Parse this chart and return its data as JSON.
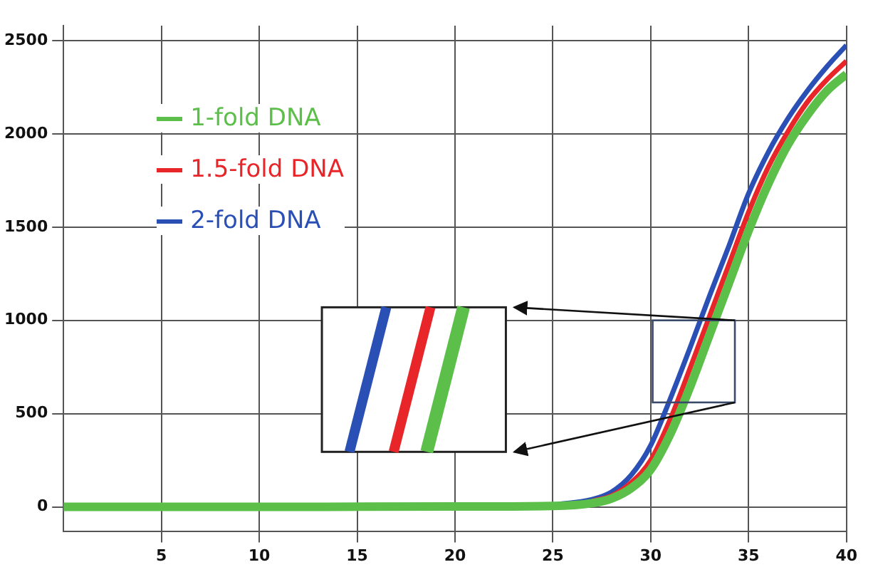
{
  "chart_data": {
    "type": "line",
    "x": [
      0,
      10,
      20,
      25,
      27,
      28,
      29,
      30,
      31,
      32,
      33,
      34,
      35,
      36,
      37,
      38,
      39,
      40
    ],
    "series": [
      {
        "name": "1-fold DNA",
        "color": "#5cbf4a",
        "values": [
          0,
          0,
          2,
          5,
          20,
          45,
          100,
          200,
          390,
          640,
          920,
          1200,
          1480,
          1730,
          1940,
          2100,
          2230,
          2320
        ]
      },
      {
        "name": "1.5-fold DNA",
        "color": "#e8262a",
        "values": [
          null,
          null,
          null,
          null,
          30,
          60,
          130,
          250,
          470,
          740,
          1020,
          1300,
          1580,
          1820,
          2010,
          2170,
          2290,
          2390
        ]
      },
      {
        "name": "2-fold DNA",
        "color": "#2a4fb5",
        "values": [
          null,
          null,
          null,
          10,
          40,
          80,
          170,
          330,
          580,
          850,
          1130,
          1400,
          1680,
          1900,
          2080,
          2230,
          2360,
          2475
        ]
      }
    ],
    "xlim": [
      0,
      40
    ],
    "xticks": [
      5,
      10,
      15,
      20,
      25,
      30,
      35,
      40
    ],
    "ylim": [
      -130,
      2580
    ],
    "yticks": [
      0,
      500,
      1000,
      1500,
      2000,
      2500
    ],
    "grid": true,
    "legend": "top left",
    "marker": "none",
    "line_style": "solid"
  }
}
